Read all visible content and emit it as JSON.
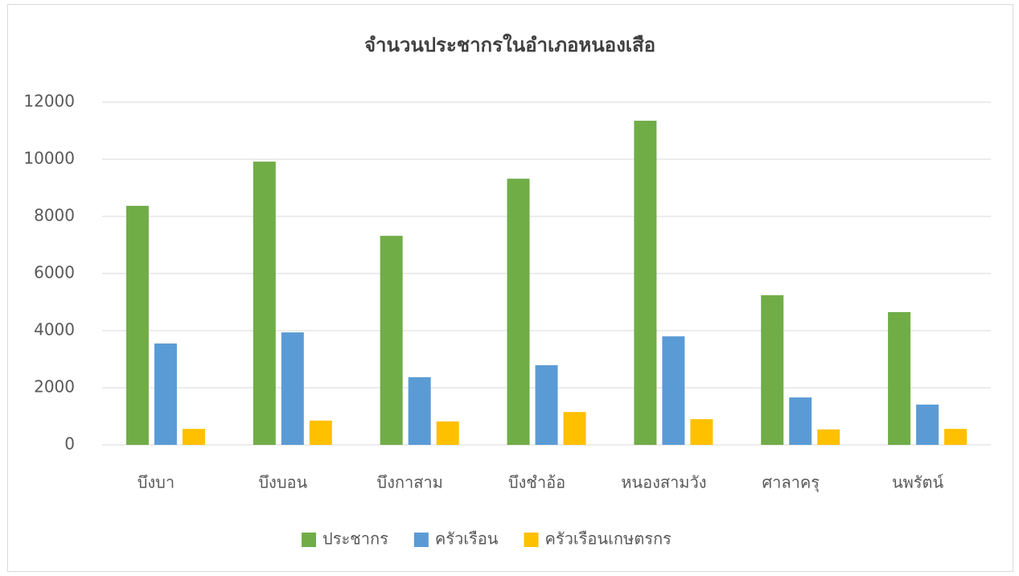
{
  "chart_data": {
    "type": "bar",
    "title": "จำนวนประชากรในอำเภอหนองเสือ",
    "categories": [
      "บึงบา",
      "บึงบอน",
      "บึงกาสาม",
      "บึงชำอ้อ",
      "หนองสามวัง",
      "ศาลาครุ",
      "นพรัตน์"
    ],
    "series": [
      {
        "name": "ประชากร",
        "color": "#70ad47",
        "values": [
          8370,
          9920,
          7320,
          9320,
          11350,
          5240,
          4650
        ]
      },
      {
        "name": "ครัวเรือน",
        "color": "#5b9bd5",
        "values": [
          3550,
          3940,
          2370,
          2790,
          3800,
          1660,
          1410
        ]
      },
      {
        "name": "ครัวเรือนเกษตรกร",
        "color": "#ffc000",
        "values": [
          560,
          850,
          820,
          1150,
          900,
          540,
          560
        ]
      }
    ],
    "ylim": [
      0,
      12000
    ],
    "yticks": [
      0,
      2000,
      4000,
      6000,
      8000,
      10000,
      12000
    ],
    "grid": true,
    "legend": "bottom"
  }
}
